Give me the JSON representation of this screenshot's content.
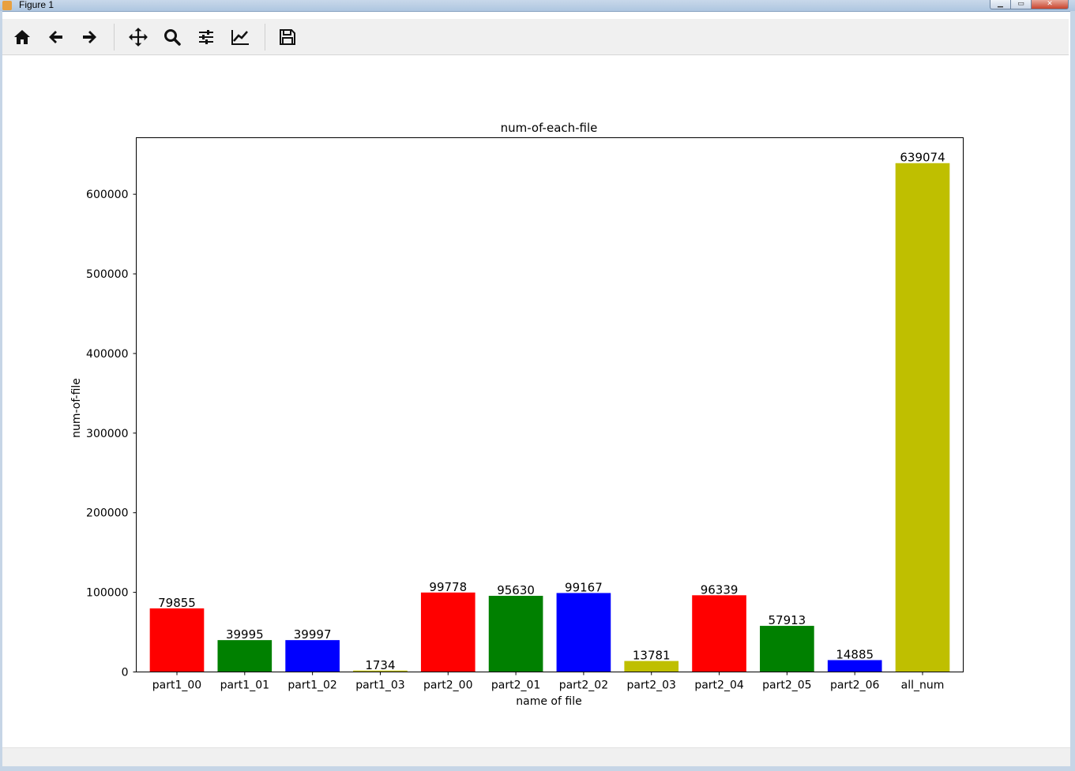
{
  "window": {
    "title": "Figure 1"
  },
  "toolbar": {
    "buttons": [
      {
        "icon": "home-icon"
      },
      {
        "icon": "back-arrow-icon"
      },
      {
        "icon": "forward-arrow-icon"
      },
      {
        "icon": "pan-move-icon"
      },
      {
        "icon": "zoom-magnifier-icon"
      },
      {
        "icon": "configure-subplots-icon"
      },
      {
        "icon": "edit-axis-curves-icon"
      },
      {
        "icon": "save-floppy-icon"
      }
    ]
  },
  "colors": {
    "red": "#ff0000",
    "green": "#008000",
    "blue": "#0000ff",
    "olive": "#bfbf00"
  },
  "chart_data": {
    "type": "bar",
    "title": "num-of-each-file",
    "xlabel": "name of file",
    "ylabel": "num-of-file",
    "categories": [
      "part1_00",
      "part1_01",
      "part1_02",
      "part1_03",
      "part2_00",
      "part2_01",
      "part2_02",
      "part2_03",
      "part2_04",
      "part2_05",
      "part2_06",
      "all_num"
    ],
    "values": [
      79855,
      39995,
      39997,
      1734,
      99778,
      95630,
      99167,
      13781,
      96339,
      57913,
      14885,
      639074
    ],
    "bar_colors": [
      "#ff0000",
      "#008000",
      "#0000ff",
      "#bfbf00",
      "#ff0000",
      "#008000",
      "#0000ff",
      "#bfbf00",
      "#ff0000",
      "#008000",
      "#0000ff",
      "#bfbf00"
    ],
    "data_labels": [
      "79855",
      "39995",
      "39997",
      "1734",
      "99778",
      "95630",
      "99167",
      "13781",
      "96339",
      "57913",
      "14885",
      "639074"
    ],
    "yticks": [
      0,
      100000,
      200000,
      300000,
      400000,
      500000,
      600000
    ],
    "ytick_labels": [
      "0",
      "100000",
      "200000",
      "300000",
      "400000",
      "500000",
      "600000"
    ],
    "ylim": [
      0,
      671028
    ],
    "grid": false,
    "legend": "none"
  }
}
